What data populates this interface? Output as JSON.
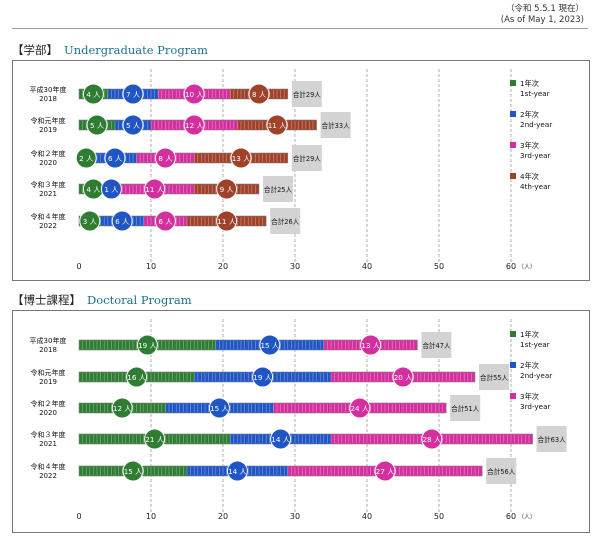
{
  "header_note": {
    "line1": "（令和 5.5.1 現在）",
    "line2": "(As of May 1, 2023)"
  },
  "sections": [
    {
      "title_jp": "【学部】",
      "title_en": "Undergraduate Program"
    },
    {
      "title_jp": "【博士課程】",
      "title_en": "Doctoral Program"
    }
  ],
  "colors": {
    "1st": "#2e7d32",
    "2nd": "#1f55c4",
    "3rd": "#d42f9f",
    "4th": "#a0412a",
    "total_box": "#d3d3d3",
    "grid": "#9a9a9a"
  },
  "chart_data": [
    {
      "type": "bar",
      "stacked": true,
      "orientation": "horizontal",
      "categories": [
        {
          "jp": "平成30年度",
          "year": "2018"
        },
        {
          "jp": "令和元年度",
          "year": "2019"
        },
        {
          "jp": "令和２年度",
          "year": "2020"
        },
        {
          "jp": "令和３年度",
          "year": "2021"
        },
        {
          "jp": "令和４年度",
          "year": "2022"
        }
      ],
      "series": [
        {
          "key": "1st",
          "name_jp": "1年次",
          "name_en": "1st-year",
          "values": [
            4,
            5,
            2,
            4,
            3
          ]
        },
        {
          "key": "2nd",
          "name_jp": "2年次",
          "name_en": "2nd-year",
          "values": [
            7,
            5,
            6,
            1,
            6
          ]
        },
        {
          "key": "3rd",
          "name_jp": "3年次",
          "name_en": "3rd-year",
          "values": [
            10,
            12,
            8,
            11,
            6
          ]
        },
        {
          "key": "4th",
          "name_jp": "4年次",
          "name_en": "4th-year",
          "values": [
            8,
            11,
            13,
            9,
            11
          ]
        }
      ],
      "totals": [
        29,
        33,
        29,
        25,
        26
      ],
      "value_suffix": "人",
      "total_prefix": "合計",
      "xlim": [
        0,
        60
      ],
      "xticks": [
        0,
        10,
        20,
        30,
        40,
        50,
        60
      ],
      "xunit": "（人）",
      "grid": true,
      "legend": "right"
    },
    {
      "type": "bar",
      "stacked": true,
      "orientation": "horizontal",
      "categories": [
        {
          "jp": "平成30年度",
          "year": "2018"
        },
        {
          "jp": "令和元年度",
          "year": "2019"
        },
        {
          "jp": "令和２年度",
          "year": "2020"
        },
        {
          "jp": "令和３年度",
          "year": "2021"
        },
        {
          "jp": "令和４年度",
          "year": "2022"
        }
      ],
      "series": [
        {
          "key": "1st",
          "name_jp": "1年次",
          "name_en": "1st-year",
          "values": [
            19,
            16,
            12,
            21,
            15
          ]
        },
        {
          "key": "2nd",
          "name_jp": "2年次",
          "name_en": "2nd-year",
          "values": [
            15,
            19,
            15,
            14,
            14
          ]
        },
        {
          "key": "3rd",
          "name_jp": "3年次",
          "name_en": "3rd-year",
          "values": [
            13,
            20,
            24,
            28,
            27
          ]
        }
      ],
      "totals": [
        47,
        55,
        51,
        63,
        56
      ],
      "value_suffix": "人",
      "total_prefix": "合計",
      "xlim": [
        0,
        60
      ],
      "xticks": [
        0,
        10,
        20,
        30,
        40,
        50,
        60
      ],
      "xunit": "（人）",
      "grid": true,
      "legend": "right"
    }
  ]
}
